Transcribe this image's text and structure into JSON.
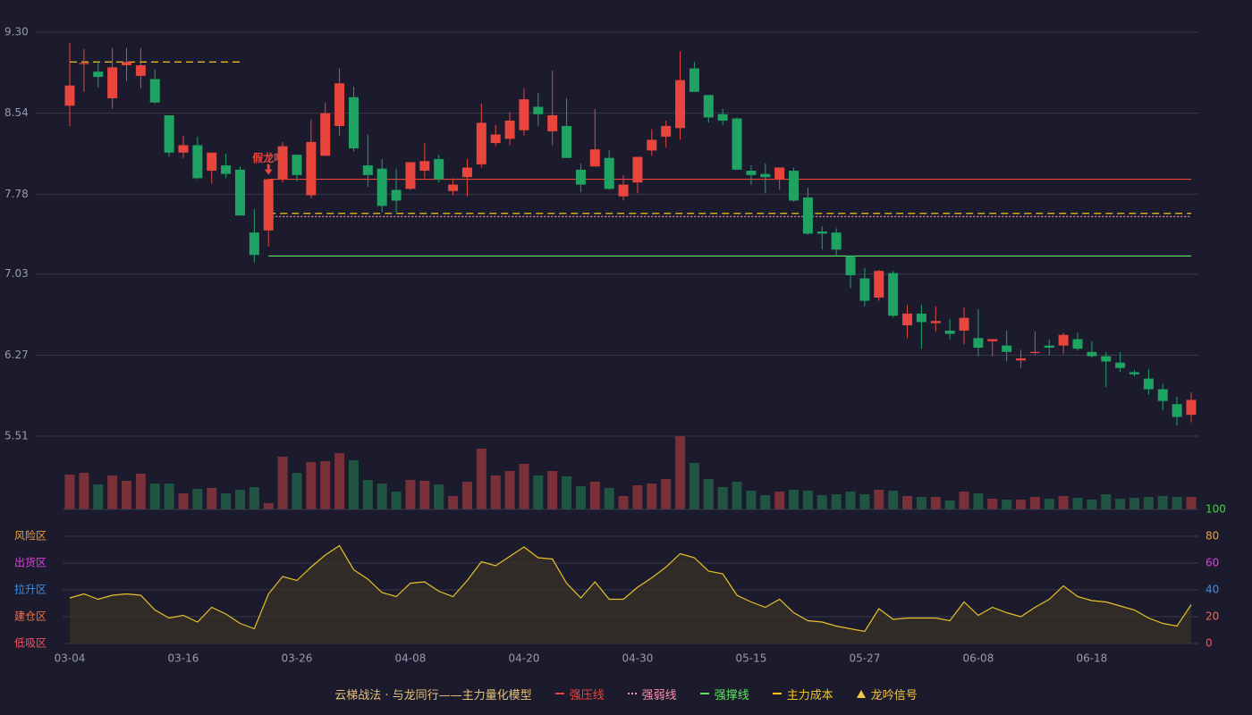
{
  "chart_data": [
    {
      "type": "candlestick",
      "categories": [
        "03-04",
        null,
        null,
        null,
        null,
        null,
        null,
        null,
        "03-16",
        null,
        null,
        null,
        null,
        null,
        null,
        null,
        "03-26",
        null,
        null,
        null,
        null,
        null,
        null,
        null,
        "04-08",
        null,
        null,
        null,
        null,
        null,
        null,
        null,
        "04-20",
        null,
        null,
        null,
        null,
        null,
        null,
        null,
        "04-30",
        null,
        null,
        null,
        null,
        null,
        null,
        null,
        "05-15",
        null,
        null,
        null,
        null,
        null,
        null,
        null,
        "05-27",
        null,
        null,
        null,
        null,
        null,
        null,
        null,
        "06-08",
        null,
        null,
        null,
        null,
        null,
        null,
        null,
        "06-18",
        null,
        null,
        null,
        null,
        null,
        null,
        null
      ],
      "open": [
        8.61,
        9.0,
        8.93,
        8.68,
        8.99,
        8.89,
        8.86,
        8.52,
        8.17,
        8.24,
        8.0,
        8.05,
        8.01,
        7.42,
        7.44,
        7.92,
        8.15,
        7.77,
        8.14,
        8.42,
        8.69,
        8.05,
        8.02,
        7.82,
        7.83,
        8.0,
        8.11,
        7.81,
        7.94,
        8.06,
        8.26,
        8.3,
        8.38,
        8.6,
        8.37,
        8.42,
        8.01,
        8.04,
        8.12,
        7.76,
        7.89,
        8.19,
        8.32,
        8.4,
        8.96,
        8.71,
        8.53,
        8.49,
        8.0,
        7.97,
        7.92,
        8.0,
        7.75,
        7.43,
        7.42,
        7.2,
        6.99,
        6.81,
        7.04,
        6.55,
        6.66,
        6.57,
        6.5,
        6.5,
        6.43,
        6.4,
        6.36,
        6.22,
        6.29,
        6.36,
        6.36,
        6.42,
        6.3,
        6.26,
        6.2,
        6.11,
        6.05,
        5.95,
        5.81,
        5.71
      ],
      "high": [
        9.2,
        9.14,
        9.03,
        9.15,
        9.15,
        9.15,
        8.95,
        8.52,
        8.33,
        8.32,
        8.17,
        8.16,
        8.04,
        7.64,
        7.92,
        8.27,
        8.15,
        8.48,
        8.64,
        8.96,
        8.79,
        8.34,
        8.11,
        8.02,
        8.08,
        8.26,
        8.15,
        7.93,
        8.11,
        8.63,
        8.43,
        8.55,
        8.77,
        8.73,
        8.94,
        8.68,
        8.07,
        8.58,
        8.19,
        7.96,
        8.13,
        8.39,
        8.47,
        9.12,
        9.02,
        8.71,
        8.58,
        8.5,
        8.05,
        8.07,
        8.03,
        8.03,
        7.84,
        7.48,
        7.46,
        7.2,
        7.09,
        7.07,
        7.06,
        6.74,
        6.74,
        6.73,
        6.61,
        6.72,
        6.7,
        6.42,
        6.5,
        6.32,
        6.49,
        6.42,
        6.48,
        6.48,
        6.4,
        6.3,
        6.3,
        6.13,
        6.14,
        6.0,
        5.88,
        5.92
      ],
      "low": [
        8.42,
        8.74,
        8.78,
        8.58,
        8.84,
        8.77,
        8.63,
        8.13,
        8.12,
        7.92,
        7.88,
        7.93,
        7.58,
        7.14,
        7.29,
        7.89,
        7.9,
        7.74,
        8.14,
        8.33,
        8.18,
        7.85,
        7.61,
        7.61,
        7.82,
        7.93,
        7.89,
        7.77,
        7.76,
        8.03,
        8.23,
        8.24,
        8.33,
        8.42,
        8.24,
        8.12,
        7.8,
        8.04,
        7.82,
        7.72,
        7.79,
        8.14,
        8.22,
        8.29,
        8.74,
        8.45,
        8.43,
        8.01,
        7.87,
        7.79,
        7.82,
        7.71,
        7.4,
        7.26,
        7.2,
        6.9,
        6.73,
        6.78,
        6.62,
        6.43,
        6.33,
        6.49,
        6.42,
        6.37,
        6.26,
        6.26,
        6.21,
        6.15,
        6.27,
        6.27,
        6.28,
        6.31,
        6.25,
        5.97,
        6.11,
        6.07,
        5.9,
        5.75,
        5.61,
        5.64
      ],
      "close": [
        8.8,
        9.01,
        8.88,
        8.97,
        9.02,
        8.99,
        8.64,
        8.17,
        8.24,
        7.93,
        8.17,
        7.97,
        7.58,
        7.21,
        7.92,
        8.23,
        7.96,
        8.27,
        8.54,
        8.82,
        8.21,
        7.96,
        7.67,
        7.72,
        8.08,
        8.09,
        7.92,
        7.87,
        8.03,
        8.45,
        8.34,
        8.47,
        8.67,
        8.53,
        8.52,
        8.12,
        7.87,
        8.2,
        7.83,
        7.87,
        8.13,
        8.29,
        8.42,
        8.85,
        8.74,
        8.5,
        8.47,
        8.01,
        7.96,
        7.94,
        8.03,
        7.72,
        7.41,
        7.41,
        7.26,
        7.02,
        6.78,
        7.06,
        6.64,
        6.66,
        6.58,
        6.59,
        6.47,
        6.62,
        6.34,
        6.42,
        6.3,
        6.24,
        6.3,
        6.34,
        6.46,
        6.33,
        6.26,
        6.21,
        6.15,
        6.09,
        5.95,
        5.84,
        5.69,
        5.85
      ],
      "up_color": "#e8453c",
      "down_color": "#1fa363",
      "ylim": [
        5.51,
        9.3
      ],
      "yticks": [
        {
          "value": 9.3,
          "label": "9.30"
        },
        8.54,
        7.78,
        7.03,
        6.27,
        5.51
      ],
      "grid": true,
      "lines": [
        {
          "name": "强压线",
          "color": "#e8453c",
          "style": "solid",
          "values": [
            null,
            null,
            null,
            null,
            null,
            null,
            null,
            null,
            null,
            null,
            null,
            null,
            null,
            null,
            7.92,
            7.92,
            7.92,
            7.92,
            7.92,
            7.92,
            7.92,
            7.92,
            7.92,
            7.92,
            7.92,
            7.92,
            7.92,
            7.92,
            7.92,
            7.92,
            7.92,
            7.92,
            7.92,
            7.92,
            7.92,
            7.92,
            7.92,
            7.92,
            7.92,
            7.92,
            7.92,
            7.92,
            7.92,
            7.92,
            7.92,
            7.92,
            7.92,
            7.92,
            7.92,
            7.92,
            7.92,
            7.92,
            7.92,
            7.92,
            7.92,
            7.92,
            7.92,
            7.92,
            7.92,
            7.92,
            7.92,
            7.92,
            7.92,
            7.92,
            7.92,
            7.92,
            7.92,
            7.92,
            7.92,
            7.92,
            7.92,
            7.92,
            7.92,
            7.92,
            7.92,
            7.92,
            7.92,
            7.92,
            7.92,
            7.92
          ]
        },
        {
          "name": "强弱线",
          "color": "#ff8fb0",
          "style": "dotted",
          "values": [
            null,
            null,
            null,
            null,
            null,
            null,
            null,
            null,
            null,
            null,
            null,
            null,
            null,
            null,
            7.57,
            7.57,
            7.57,
            7.57,
            7.57,
            7.57,
            7.57,
            7.57,
            7.57,
            7.57,
            7.57,
            7.57,
            7.57,
            7.57,
            7.57,
            7.57,
            7.57,
            7.57,
            7.57,
            7.57,
            7.57,
            7.57,
            7.57,
            7.57,
            7.57,
            7.57,
            7.57,
            7.57,
            7.57,
            7.57,
            7.57,
            7.57,
            7.57,
            7.57,
            7.57,
            7.57,
            7.57,
            7.57,
            7.57,
            7.57,
            7.57,
            7.57,
            7.57,
            7.57,
            7.57,
            7.57,
            7.57,
            7.57,
            7.57,
            7.57,
            7.57,
            7.57,
            7.57,
            7.57,
            7.57,
            7.57,
            7.57,
            7.57,
            7.57,
            7.57,
            7.57,
            7.57,
            7.57,
            7.57,
            7.57,
            7.57
          ]
        },
        {
          "name": "强撑线",
          "color": "#5ee55e",
          "style": "solid",
          "values": [
            null,
            null,
            null,
            null,
            null,
            null,
            null,
            null,
            null,
            null,
            null,
            null,
            null,
            null,
            7.2,
            7.2,
            7.2,
            7.2,
            7.2,
            7.2,
            7.2,
            7.2,
            7.2,
            7.2,
            7.2,
            7.2,
            7.2,
            7.2,
            7.2,
            7.2,
            7.2,
            7.2,
            7.2,
            7.2,
            7.2,
            7.2,
            7.2,
            7.2,
            7.2,
            7.2,
            7.2,
            7.2,
            7.2,
            7.2,
            7.2,
            7.2,
            7.2,
            7.2,
            7.2,
            7.2,
            7.2,
            7.2,
            7.2,
            7.2,
            7.2,
            7.2,
            7.2,
            7.2,
            7.2,
            7.2,
            7.2,
            7.2,
            7.2,
            7.2,
            7.2,
            7.2,
            7.2,
            7.2,
            7.2,
            7.2,
            7.2,
            7.2,
            7.2,
            7.2,
            7.2,
            7.2,
            7.2,
            7.2,
            7.2,
            7.2
          ]
        },
        {
          "name": "主力成本",
          "color": "#f5c518",
          "style": "dashed",
          "values": [
            9.02,
            9.02,
            9.02,
            9.02,
            9.02,
            9.02,
            9.02,
            9.02,
            9.02,
            9.02,
            9.02,
            9.02,
            9.02,
            null,
            7.6,
            7.6,
            7.6,
            7.6,
            7.6,
            7.6,
            7.6,
            7.6,
            7.6,
            7.6,
            7.6,
            7.6,
            7.6,
            7.6,
            7.6,
            7.6,
            7.6,
            7.6,
            7.6,
            7.6,
            7.6,
            7.6,
            7.6,
            7.6,
            7.6,
            7.6,
            7.6,
            7.6,
            7.6,
            7.6,
            7.6,
            7.6,
            7.6,
            7.6,
            7.6,
            7.6,
            7.6,
            7.6,
            7.6,
            7.6,
            7.6,
            7.6,
            7.6,
            7.6,
            7.6,
            7.6,
            7.6,
            7.6,
            7.6,
            7.6,
            7.6,
            7.6,
            7.6,
            7.6,
            7.6,
            7.6,
            7.6,
            7.6,
            7.6,
            7.6,
            7.6,
            7.6,
            7.6,
            7.6,
            7.6,
            7.6
          ]
        }
      ],
      "annotations": [
        {
          "text": "假龙吟",
          "index": 14,
          "color": "#e8453c"
        }
      ],
      "signal": {
        "name": "龙吟信号",
        "color": "#f5c542"
      },
      "legend_title": "云梯战法 · 与龙同行——主力量化模型"
    },
    {
      "type": "volume",
      "values": [
        39,
        41,
        28,
        38,
        32,
        40,
        29,
        29,
        18,
        23,
        24,
        18,
        22,
        25,
        7,
        59,
        41,
        53,
        54,
        63,
        55,
        33,
        29,
        20,
        33,
        32,
        28,
        15,
        31,
        68,
        38,
        43,
        51,
        38,
        43,
        37,
        26,
        31,
        24,
        15,
        27,
        29,
        34,
        82,
        52,
        34,
        25,
        31,
        21,
        16,
        20,
        22,
        21,
        16,
        17,
        20,
        17,
        22,
        21,
        15,
        14,
        14,
        10,
        20,
        18,
        12,
        11,
        11,
        14,
        12,
        15,
        13,
        11,
        17,
        12,
        13,
        14,
        15,
        14,
        14
      ],
      "up_color": "#7a3038",
      "down_color": "#1f5542"
    },
    {
      "type": "line",
      "values": [
        34,
        37,
        33,
        36,
        37,
        36,
        25,
        19,
        21,
        16,
        27,
        22,
        15,
        11,
        37,
        50,
        47,
        57,
        66,
        73,
        55,
        48,
        38,
        35,
        45,
        46,
        39,
        35,
        47,
        61,
        58,
        65,
        72,
        64,
        63,
        45,
        34,
        46,
        33,
        33,
        42,
        49,
        57,
        67,
        64,
        54,
        52,
        36,
        31,
        27,
        33,
        23,
        17,
        16,
        13,
        11,
        9,
        26,
        18,
        19,
        19,
        19,
        17,
        31,
        21,
        27,
        23,
        20,
        27,
        33,
        43,
        35,
        32,
        31,
        28,
        25,
        19,
        15,
        13,
        29
      ],
      "color": "#e6c229",
      "ylim": [
        0,
        100
      ],
      "yticks": [
        0,
        20,
        40,
        60,
        80,
        100
      ],
      "ytick_colors": [
        "#ff4d5e",
        "#ff6a3d",
        "#3d8fe8",
        "#e040e0",
        "#f0a030",
        "#33dd33"
      ],
      "zones": [
        {
          "label": "低吸区",
          "value": 0,
          "color": "#ff4d5e"
        },
        {
          "label": "建仓区",
          "value": 20,
          "color": "#ff6a3d"
        },
        {
          "label": "拉升区",
          "value": 40,
          "color": "#3d8fe8"
        },
        {
          "label": "出货区",
          "value": 60,
          "color": "#e040e0"
        },
        {
          "label": "风险区",
          "value": 80,
          "color": "#f0a030"
        }
      ],
      "grid": true
    }
  ]
}
